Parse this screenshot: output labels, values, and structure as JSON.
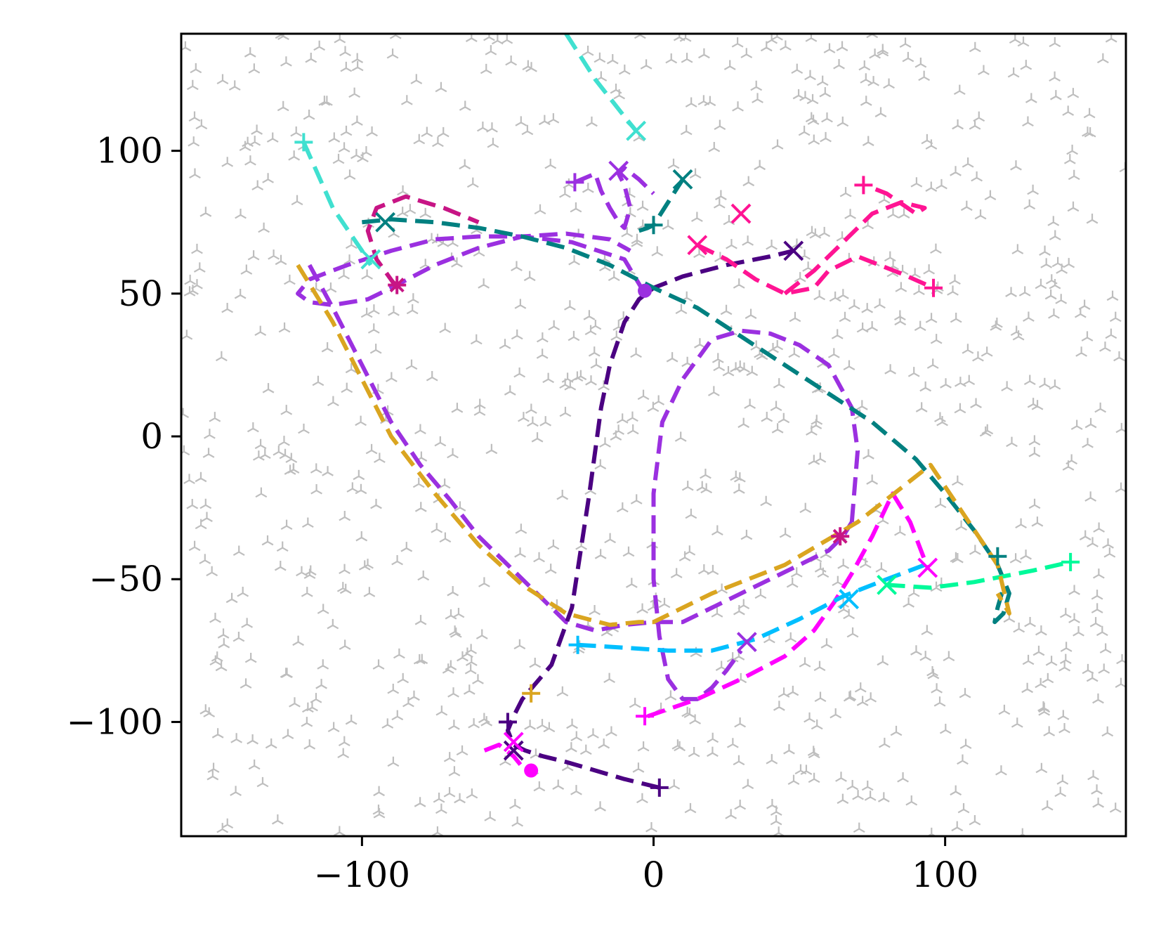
{
  "chart_data": {
    "type": "line",
    "title": "",
    "xlabel": "",
    "ylabel": "",
    "xlim": [
      -162,
      162
    ],
    "ylim": [
      -140,
      141
    ],
    "xticks": [
      -100,
      0,
      100
    ],
    "xtick_labels": [
      "−100",
      "0",
      "100"
    ],
    "yticks": [
      -100,
      -50,
      0,
      50,
      100
    ],
    "ytick_labels": [
      "−100",
      "−50",
      "0",
      "50",
      "100"
    ],
    "grid": false,
    "legend": "none",
    "background_markers": {
      "marker": "tri",
      "color": "#888888",
      "description": "scattered faint tri-shaped markers over the whole axes, darker clusters along the trajectories"
    },
    "series": [
      {
        "color": "#9b30e0",
        "dash": "dashed",
        "x": [
          -3,
          -10,
          -28,
          -45,
          -60,
          -75,
          -90,
          -105,
          -118,
          -122,
          -118,
          -110,
          -98,
          -90,
          -75,
          -60,
          -45,
          -30,
          -15,
          -8
        ],
        "y": [
          50,
          62,
          68,
          70,
          70,
          69,
          65,
          60,
          55,
          50,
          47,
          46,
          48,
          52,
          60,
          66,
          70,
          71,
          69,
          65
        ]
      },
      {
        "color": "#9b30e0",
        "dash": "dashed",
        "x": [
          -118,
          -110,
          -100,
          -90,
          -80,
          -70,
          -60,
          -50,
          -40,
          -30,
          -20,
          -10,
          0,
          10,
          20,
          30,
          40,
          50,
          60,
          65,
          68
        ],
        "y": [
          60,
          45,
          25,
          5,
          -10,
          -22,
          -35,
          -45,
          -55,
          -65,
          -68,
          -66,
          -65,
          -65,
          -60,
          -55,
          -50,
          -45,
          -40,
          -35,
          -30
        ]
      },
      {
        "color": "#9b30e0",
        "dash": "dashed",
        "x": [
          68,
          70,
          68,
          60,
          50,
          40,
          30,
          20,
          10,
          3,
          0,
          0,
          2,
          5,
          10,
          15,
          20,
          25,
          30
        ],
        "y": [
          -30,
          -5,
          10,
          25,
          32,
          36,
          37,
          34,
          20,
          5,
          -20,
          -50,
          -70,
          -85,
          -92,
          -92,
          -88,
          -82,
          -75
        ]
      },
      {
        "color": "#9b30e0",
        "dash": "dashed",
        "x": [
          -27,
          -20,
          -18,
          -15,
          -12,
          -10,
          -8,
          -10,
          -12,
          -10,
          -5,
          0
        ],
        "y": [
          89,
          92,
          86,
          80,
          75,
          73,
          80,
          88,
          92,
          94,
          90,
          85
        ]
      },
      {
        "color": "#4b0082",
        "dash": "dashed",
        "x": [
          2,
          -10,
          -20,
          -30,
          -38,
          -44,
          -48,
          -50,
          -48,
          -45,
          -35,
          -28,
          -25,
          -22,
          -20,
          -18,
          -15,
          -10,
          -5,
          0,
          10,
          25,
          40,
          48
        ],
        "y": [
          -123,
          -120,
          -117,
          -114,
          -112,
          -110,
          -108,
          -103,
          -98,
          -92,
          -80,
          -60,
          -40,
          -20,
          -5,
          10,
          25,
          40,
          48,
          52,
          56,
          60,
          63,
          65
        ]
      },
      {
        "color": "#008080",
        "dash": "dashed",
        "x": [
          -100,
          -90,
          -75,
          -60,
          -45,
          -30,
          -15,
          0,
          15,
          30,
          45,
          60,
          75,
          90,
          100,
          110,
          118,
          122,
          120,
          117,
          118,
          120
        ],
        "y": [
          75,
          76,
          75,
          73,
          70,
          66,
          60,
          52,
          45,
          35,
          25,
          15,
          5,
          -8,
          -20,
          -33,
          -45,
          -55,
          -62,
          -65,
          -60,
          -53
        ]
      },
      {
        "color": "#008080",
        "dash": "dashed",
        "x": [
          -5,
          -2,
          0,
          5,
          10
        ],
        "y": [
          72,
          73,
          74,
          82,
          90
        ]
      },
      {
        "color": "#40e0d0",
        "dash": "dashed",
        "x": [
          -120,
          -110,
          -100,
          -97
        ],
        "y": [
          103,
          80,
          65,
          60
        ]
      },
      {
        "color": "#40e0d0",
        "dash": "dashed",
        "x": [
          -30,
          -20,
          -10,
          -6
        ],
        "y": [
          141,
          125,
          112,
          107
        ]
      },
      {
        "color": "#c71585",
        "dash": "dashed",
        "x": [
          -88,
          -95,
          -98,
          -95,
          -85,
          -72,
          -60
        ],
        "y": [
          52,
          62,
          72,
          80,
          84,
          80,
          75
        ]
      },
      {
        "color": "#ff1493",
        "dash": "dashed",
        "x": [
          15,
          25,
          35,
          45,
          55,
          60,
          70,
          85,
          96
        ],
        "y": [
          67,
          62,
          55,
          50,
          52,
          58,
          63,
          57,
          52
        ]
      },
      {
        "color": "#ff1493",
        "dash": "dashed",
        "x": [
          45,
          55,
          65,
          75,
          85,
          93,
          90,
          80,
          75
        ],
        "y": [
          50,
          58,
          68,
          78,
          82,
          80,
          78,
          85,
          87
        ]
      },
      {
        "color": "#ff00ff",
        "dash": "dashed",
        "x": [
          -2,
          15,
          30,
          45,
          55,
          62,
          68,
          75,
          82,
          88,
          94
        ],
        "y": [
          -98,
          -92,
          -85,
          -77,
          -68,
          -58,
          -48,
          -35,
          -20,
          -30,
          -46
        ]
      },
      {
        "color": "#ff00ff",
        "dash": "dashed",
        "x": [
          -58,
          -53,
          -48,
          -44
        ],
        "y": [
          -110,
          -108,
          -112,
          -117
        ]
      },
      {
        "color": "#00bfff",
        "dash": "dashed",
        "x": [
          -26,
          -10,
          5,
          20,
          35,
          50,
          65,
          80,
          93
        ],
        "y": [
          -73,
          -74,
          -75,
          -75,
          -71,
          -64,
          -56,
          -50,
          -45
        ]
      },
      {
        "color": "#00fa9a",
        "dash": "dashed",
        "x": [
          80,
          95,
          110,
          120,
          130,
          143
        ],
        "y": [
          -52,
          -53,
          -51,
          -49,
          -47,
          -44
        ]
      },
      {
        "color": "#daa520",
        "dash": "dashed",
        "x": [
          -122,
          -110,
          -100,
          -90,
          -75,
          -60,
          -45,
          -30,
          -15,
          -5,
          0,
          20,
          45,
          70,
          95,
          118,
          122,
          118
        ],
        "y": [
          60,
          40,
          20,
          0,
          -20,
          -38,
          -52,
          -62,
          -66,
          -65,
          -65,
          -55,
          -45,
          -30,
          -10,
          -45,
          -62,
          -55
        ]
      }
    ],
    "markers": [
      {
        "shape": "+",
        "color": "#40e0d0",
        "x": -120,
        "y": 103
      },
      {
        "shape": "x",
        "color": "#40e0d0",
        "x": -97,
        "y": 62
      },
      {
        "shape": "x",
        "color": "#40e0d0",
        "x": -6,
        "y": 107
      },
      {
        "shape": "*",
        "color": "#c71585",
        "x": -88,
        "y": 53
      },
      {
        "shape": "x",
        "color": "#008080",
        "x": -92,
        "y": 75
      },
      {
        "shape": "+",
        "color": "#008080",
        "x": 0,
        "y": 74
      },
      {
        "shape": "x",
        "color": "#008080",
        "x": 10,
        "y": 90
      },
      {
        "shape": "+",
        "color": "#008080",
        "x": 118,
        "y": -42
      },
      {
        "shape": "+",
        "color": "#9b30e0",
        "x": -27,
        "y": 89
      },
      {
        "shape": "x",
        "color": "#9b30e0",
        "x": -12,
        "y": 93
      },
      {
        "shape": "o",
        "color": "#9b30e0",
        "x": -3,
        "y": 51
      },
      {
        "shape": "x",
        "color": "#ff1493",
        "x": 15,
        "y": 67
      },
      {
        "shape": "x",
        "color": "#ff1493",
        "x": 30,
        "y": 78
      },
      {
        "shape": "+",
        "color": "#ff1493",
        "x": 72,
        "y": 88
      },
      {
        "shape": "+",
        "color": "#ff1493",
        "x": 96,
        "y": 52
      },
      {
        "shape": "x",
        "color": "#4b0082",
        "x": 48,
        "y": 65
      },
      {
        "shape": "+",
        "color": "#4b0082",
        "x": 2,
        "y": -123
      },
      {
        "shape": "+",
        "color": "#4b0082",
        "x": -50,
        "y": -100
      },
      {
        "shape": "x",
        "color": "#4b0082",
        "x": -48,
        "y": -110
      },
      {
        "shape": "x",
        "color": "#9b30e0",
        "x": 32,
        "y": -72
      },
      {
        "shape": "*",
        "color": "#c71585",
        "x": 64,
        "y": -35
      },
      {
        "shape": "x",
        "color": "#ff00ff",
        "x": 94,
        "y": -46
      },
      {
        "shape": "+",
        "color": "#ff00ff",
        "x": -3,
        "y": -98
      },
      {
        "shape": "x",
        "color": "#ff00ff",
        "x": -48,
        "y": -107
      },
      {
        "shape": "o",
        "color": "#ff00ff",
        "x": -42,
        "y": -117
      },
      {
        "shape": "+",
        "color": "#00bfff",
        "x": -26,
        "y": -73
      },
      {
        "shape": "x",
        "color": "#00bfff",
        "x": 67,
        "y": -57
      },
      {
        "shape": "x",
        "color": "#00fa9a",
        "x": 80,
        "y": -52
      },
      {
        "shape": "+",
        "color": "#00fa9a",
        "x": 143,
        "y": -44
      },
      {
        "shape": "+",
        "color": "#daa520",
        "x": -42,
        "y": -90
      }
    ]
  }
}
